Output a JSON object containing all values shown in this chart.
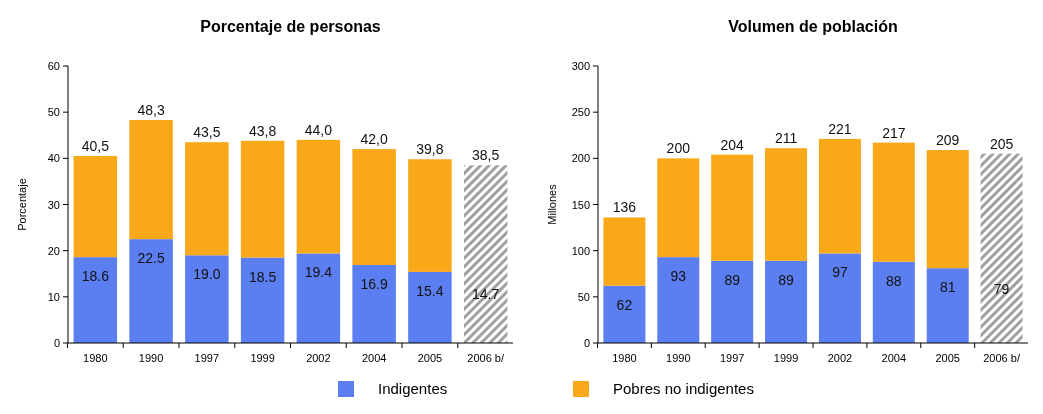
{
  "chart_data": [
    {
      "type": "bar",
      "title": "Porcentaje de personas",
      "ylabel": "Porcentaje",
      "stacked": true,
      "categories": [
        "1980",
        "1990",
        "1997",
        "1999",
        "2002",
        "2004",
        "2005",
        "2006 b/"
      ],
      "ylim": [
        0,
        60
      ],
      "yticks": [
        0,
        10,
        20,
        30,
        40,
        50,
        60
      ],
      "legend": "bottom",
      "grid": false,
      "series": [
        {
          "name": "Indigentes",
          "color": "#5b7ff0",
          "colors": [
            "#5b7ff0",
            "#5b7ff0",
            "#5b7ff0",
            "#5b7ff0",
            "#5b7ff0",
            "#5b7ff0",
            "#5b7ff0",
            "#a0a0a0"
          ],
          "values": [
            18.6,
            22.5,
            19.0,
            18.5,
            19.4,
            16.9,
            15.4,
            14.7
          ],
          "value_labels": [
            "18.6",
            "22.5",
            "19.0",
            "18.5",
            "19.4",
            "16.9",
            "15.4",
            "14.7"
          ]
        },
        {
          "name": "Pobres no indigentes",
          "color": "#f9a81a",
          "colors": [
            "#f9a81a",
            "#f9a81a",
            "#f9a81a",
            "#f9a81a",
            "#f9a81a",
            "#f9a81a",
            "#f9a81a",
            "#a0a0a0"
          ],
          "values": [
            21.9,
            25.8,
            24.5,
            25.3,
            24.6,
            25.1,
            24.4,
            23.8
          ]
        }
      ],
      "totals": [
        "40,5",
        "48,3",
        "43,5",
        "43,8",
        "44,0",
        "42,0",
        "39,8",
        "38,5"
      ]
    },
    {
      "type": "bar",
      "title": "Volumen de población",
      "ylabel": "Millones",
      "stacked": true,
      "categories": [
        "1980",
        "1990",
        "1997",
        "1999",
        "2002",
        "2004",
        "2005",
        "2006 b/"
      ],
      "ylim": [
        0,
        300
      ],
      "yticks": [
        0,
        50,
        100,
        150,
        200,
        250,
        300
      ],
      "grid": false,
      "series": [
        {
          "color": "#5b7ff0",
          "colors": [
            "#5b7ff0",
            "#5b7ff0",
            "#5b7ff0",
            "#5b7ff0",
            "#5b7ff0",
            "#5b7ff0",
            "#5b7ff0",
            "#a0a0a0"
          ],
          "values": [
            62,
            93,
            89,
            89,
            97,
            88,
            81,
            79
          ],
          "value_labels": [
            "62",
            "93",
            "89",
            "89",
            "97",
            "88",
            "81",
            "79"
          ]
        },
        {
          "color": "#f9a81a",
          "colors": [
            "#f9a81a",
            "#f9a81a",
            "#f9a81a",
            "#f9a81a",
            "#f9a81a",
            "#f9a81a",
            "#f9a81a",
            "#a0a0a0"
          ],
          "values": [
            74,
            107,
            115,
            122,
            124,
            129,
            128,
            126
          ]
        }
      ],
      "totals": [
        "136",
        "200",
        "204",
        "211",
        "221",
        "217",
        "209",
        "205"
      ]
    }
  ]
}
